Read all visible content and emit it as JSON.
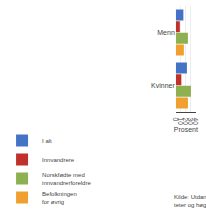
{
  "chart_data": {
    "type": "bar",
    "orientation": "horizontal",
    "categories": [
      "Menn",
      "Kvinner"
    ],
    "series": [
      {
        "name": "I alt",
        "color": "#4472C4",
        "values": [
          15,
          22
        ]
      },
      {
        "name": "Innvandrere",
        "color": "#C0312B",
        "values": [
          8,
          11
        ]
      },
      {
        "name": "Norskfødte med\ninnvandrerforeldre",
        "color": "#8DB050",
        "values": [
          24,
          30
        ]
      },
      {
        "name": "Befolkningen\nfor øvrig",
        "color": "#F0A030",
        "values": [
          16,
          24
        ]
      }
    ],
    "xlabel": "Prosent",
    "xlim": [
      0,
      40
    ],
    "xticks": [
      0,
      10,
      20,
      30,
      40
    ],
    "grid": true,
    "annotations": [
      "Kilde: Utdanningsstatistikk, studenter ved universi-\nteter og høgskoler, Statistisk sentralbyrå."
    ]
  }
}
